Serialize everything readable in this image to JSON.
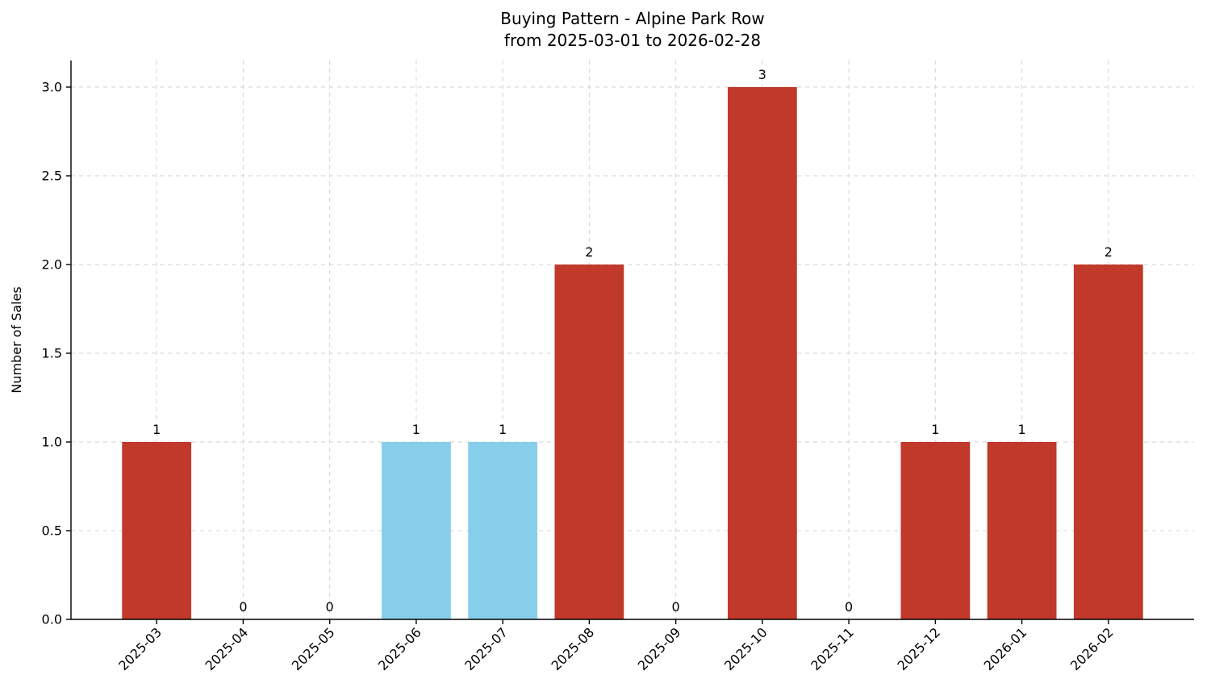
{
  "chart_data": {
    "type": "bar",
    "title": "Buying Pattern - Alpine Park Row",
    "subtitle": "from 2025-03-01 to 2026-02-28",
    "categories": [
      "2025-03",
      "2025-04",
      "2025-05",
      "2025-06",
      "2025-07",
      "2025-08",
      "2025-09",
      "2025-10",
      "2025-11",
      "2025-12",
      "2026-01",
      "2026-02"
    ],
    "values": [
      1,
      0,
      0,
      1,
      1,
      2,
      0,
      3,
      0,
      1,
      1,
      2
    ],
    "bar_colors": [
      "#c0392b",
      "#c0392b",
      "#c0392b",
      "#87ceeb",
      "#87ceeb",
      "#c0392b",
      "#c0392b",
      "#c0392b",
      "#c0392b",
      "#c0392b",
      "#c0392b",
      "#c0392b"
    ],
    "default_bar_color": "#c0392b",
    "highlight_bar_color": "#87ceeb",
    "xlabel": "",
    "ylabel": "Number of Sales",
    "yticks": [
      "0.0",
      "0.5",
      "1.0",
      "1.5",
      "2.0",
      "2.5",
      "3.0"
    ],
    "ytick_values": [
      0,
      0.5,
      1,
      1.5,
      2,
      2.5,
      3
    ],
    "ylim": [
      0,
      3.15
    ],
    "grid": true,
    "grid_style": "dashed",
    "legend": "none",
    "value_labels_shown": true
  }
}
